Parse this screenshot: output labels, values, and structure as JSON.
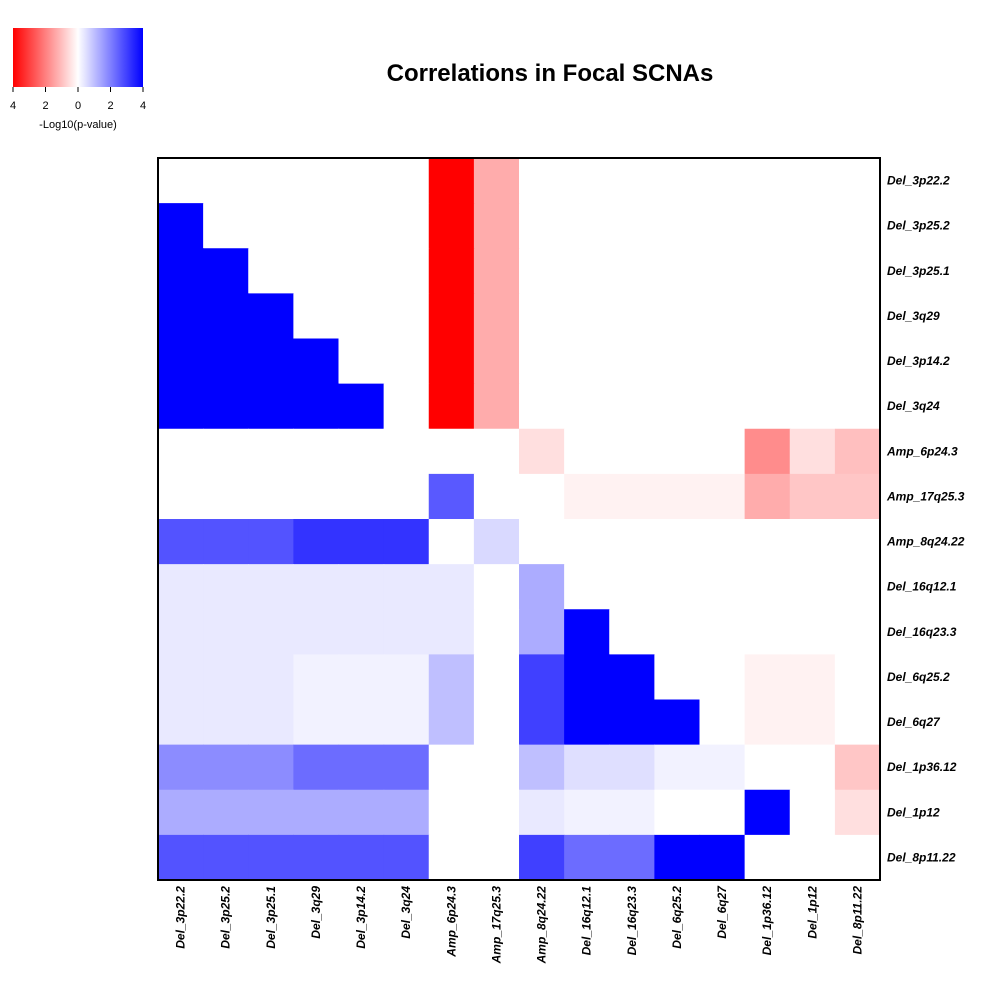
{
  "chart_data": {
    "type": "heatmap",
    "title": "Correlations in Focal SCNAs",
    "legend": {
      "title": "-Log10(p-value)",
      "ticks": [
        "4",
        "2",
        "0",
        "2",
        "4"
      ],
      "range": [
        -4,
        4
      ],
      "colors": {
        "negative": "#ff0000",
        "zero": "#ffffff",
        "positive": "#0000ff"
      }
    },
    "row_labels": [
      "Del_3p22.2",
      "Del_3p25.2",
      "Del_3p25.1",
      "Del_3q29",
      "Del_3p14.2",
      "Del_3q24",
      "Amp_6p24.3",
      "Amp_17q25.3",
      "Amp_8q24.22",
      "Del_16q12.1",
      "Del_16q23.3",
      "Del_6q25.2",
      "Del_6q27",
      "Del_1p36.12",
      "Del_1p12",
      "Del_8p11.22"
    ],
    "col_labels": [
      "Del_3p22.2",
      "Del_3p25.2",
      "Del_3p25.1",
      "Del_3q29",
      "Del_3p14.2",
      "Del_3q24",
      "Amp_6p24.3",
      "Amp_17q25.3",
      "Amp_8q24.22",
      "Del_16q12.1",
      "Del_16q23.3",
      "Del_6q25.2",
      "Del_6q27",
      "Del_1p36.12",
      "Del_1p12",
      "Del_8p11.22"
    ],
    "values": [
      [
        0,
        0,
        0,
        0,
        0,
        0,
        -4,
        -1.3,
        0,
        0,
        0,
        0,
        0,
        0,
        0,
        0
      ],
      [
        4,
        0,
        0,
        0,
        0,
        0,
        -4,
        -1.3,
        0,
        0,
        0,
        0,
        0,
        0,
        0,
        0
      ],
      [
        4,
        4,
        0,
        0,
        0,
        0,
        -4,
        -1.3,
        0,
        0,
        0,
        0,
        0,
        0,
        0,
        0
      ],
      [
        4,
        4,
        4,
        0,
        0,
        0,
        -4,
        -1.3,
        0,
        0,
        0,
        0,
        0,
        0,
        0,
        0
      ],
      [
        4,
        4,
        4,
        4,
        0,
        0,
        -4,
        -1.3,
        0,
        0,
        0,
        0,
        0,
        0,
        0,
        0
      ],
      [
        4,
        4,
        4,
        4,
        4,
        0,
        -4,
        -1.3,
        0,
        0,
        0,
        0,
        0,
        0,
        0,
        0
      ],
      [
        0,
        0,
        0,
        0,
        0,
        0,
        0,
        0,
        -0.5,
        0,
        0,
        0,
        0,
        -1.8,
        -0.5,
        -1.0
      ],
      [
        0,
        0,
        0,
        0,
        0,
        0,
        2.6,
        0,
        0,
        -0.2,
        -0.2,
        -0.2,
        -0.2,
        -1.3,
        -0.9,
        -0.9
      ],
      [
        2.7,
        2.7,
        2.7,
        3.2,
        3.2,
        3.2,
        0,
        0.6,
        0,
        0,
        0,
        0,
        0,
        0,
        0,
        0
      ],
      [
        0.35,
        0.35,
        0.35,
        0.35,
        0.35,
        0.35,
        0.35,
        0,
        1.3,
        0,
        0,
        0,
        0,
        0,
        0,
        0
      ],
      [
        0.35,
        0.35,
        0.35,
        0.35,
        0.35,
        0.35,
        0.35,
        0,
        1.3,
        4,
        0,
        0,
        0,
        0,
        0,
        0
      ],
      [
        0.35,
        0.35,
        0.35,
        0.2,
        0.2,
        0.2,
        1.0,
        0,
        3.0,
        4,
        4,
        0,
        0,
        -0.2,
        -0.2,
        0
      ],
      [
        0.35,
        0.35,
        0.35,
        0.2,
        0.2,
        0.2,
        1.0,
        0,
        3.0,
        4,
        4,
        4,
        0,
        -0.2,
        -0.2,
        0
      ],
      [
        1.8,
        1.8,
        1.8,
        2.3,
        2.3,
        2.3,
        0,
        0,
        1.0,
        0.5,
        0.5,
        0.2,
        0.2,
        0,
        0,
        -0.9
      ],
      [
        1.3,
        1.3,
        1.3,
        1.3,
        1.3,
        1.3,
        0,
        0,
        0.35,
        0.2,
        0.2,
        0,
        0,
        4,
        0,
        -0.5
      ],
      [
        2.7,
        2.7,
        2.7,
        2.7,
        2.7,
        2.7,
        0,
        0,
        3.0,
        2.3,
        2.3,
        4,
        4,
        0,
        0,
        0
      ]
    ]
  }
}
